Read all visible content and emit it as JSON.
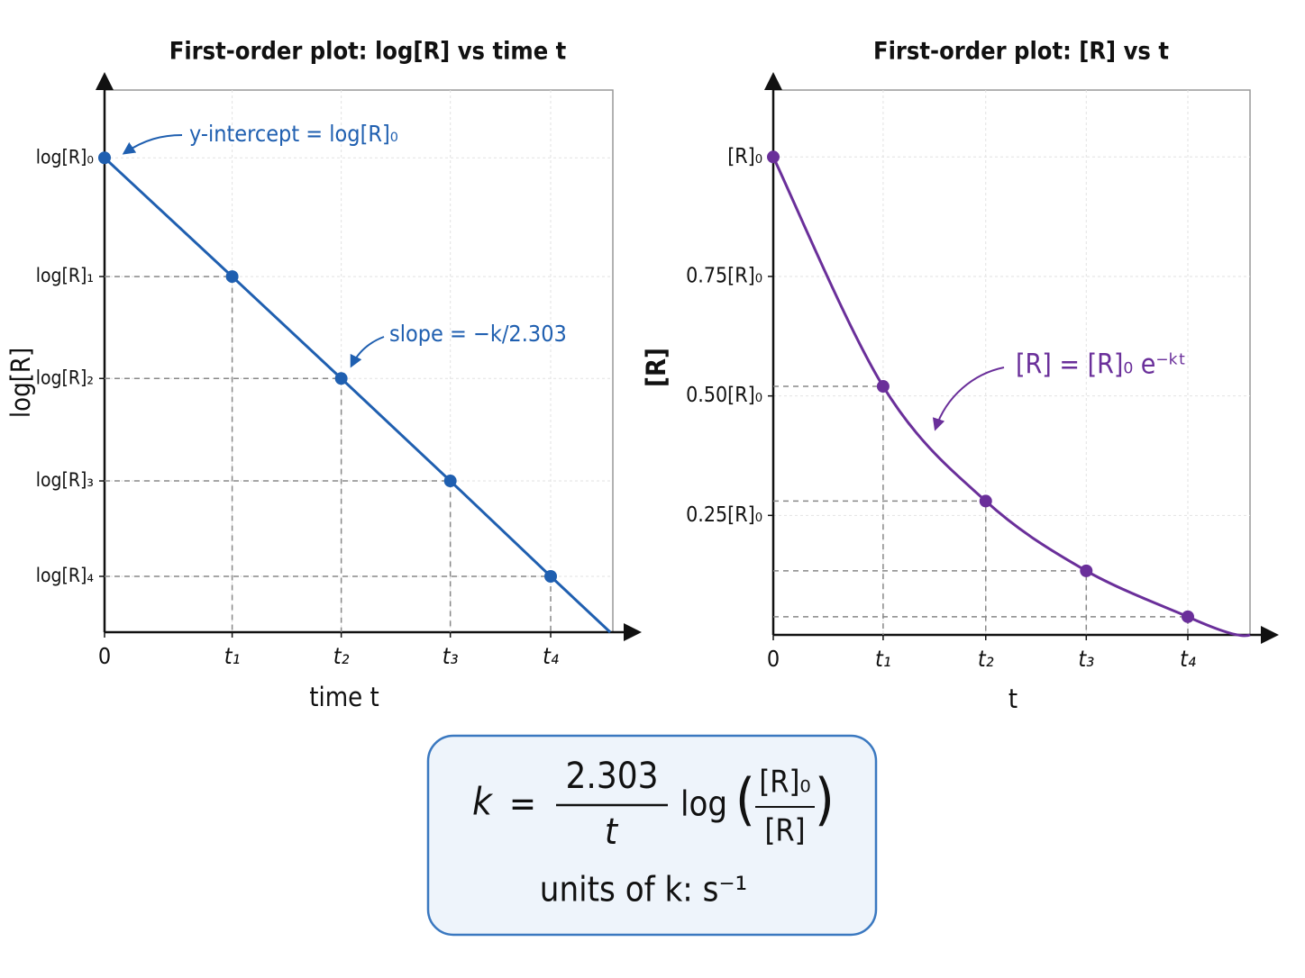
{
  "chart_data": [
    {
      "type": "line",
      "title": "First-order plot: log[R] vs time t",
      "x_label": "time t",
      "y_label": "log[R]",
      "x": [
        0,
        1.17,
        2.17,
        3.17,
        4.09
      ],
      "series": [
        {
          "color": "#1f5fb0",
          "values": [
            0.875,
            0.656,
            0.468,
            0.279,
            0.103
          ]
        }
      ],
      "xlim": [
        0,
        4.66
      ],
      "ylim": [
        0,
        1
      ],
      "xticks": [
        0,
        {
          "value": 1.17,
          "label": "t₁"
        },
        {
          "value": 2.17,
          "label": "t₂"
        },
        {
          "value": 3.17,
          "label": "t₃"
        },
        {
          "value": 4.09,
          "label": "t₄"
        }
      ],
      "yticks": [
        {
          "value": 0.875,
          "label": "log[R]₀"
        },
        {
          "value": 0.656,
          "label": "log[R]₁"
        },
        {
          "value": 0.468,
          "label": "log[R]₂"
        },
        {
          "value": 0.279,
          "label": "log[R]₃"
        },
        {
          "value": 0.103,
          "label": "log[R]₄"
        }
      ],
      "grid": true,
      "curve": "straight",
      "annotations": [
        "y-intercept = log[R]₀",
        "slope = −k/2.303"
      ]
    },
    {
      "type": "line",
      "title": "First-order plot: [R] vs t",
      "x_label": "t",
      "y_label": "[R]",
      "x": [
        0,
        1.06,
        2.05,
        3.02,
        4.0
      ],
      "series": [
        {
          "color": "#6a2f9a",
          "values": [
            1,
            0.52,
            0.28,
            0.134,
            0.038
          ]
        }
      ],
      "xlim": [
        0,
        4.6
      ],
      "ylim": [
        0,
        1.14
      ],
      "xticks": [
        0,
        {
          "value": 1.06,
          "label": "t₁"
        },
        {
          "value": 2.05,
          "label": "t₂"
        },
        {
          "value": 3.02,
          "label": "t₃"
        },
        {
          "value": 4.0,
          "label": "t₄"
        }
      ],
      "yticks": [
        {
          "value": 1,
          "label": "[R]₀"
        },
        {
          "value": 0.75,
          "label": "0.75[R]₀"
        },
        {
          "value": 0.5,
          "label": "0.50[R]₀"
        },
        {
          "value": 0.25,
          "label": "0.25[R]₀"
        }
      ],
      "grid": true,
      "curve": "smooth",
      "annotations": [
        "[R] = [R]₀ e⁻ᵏᵗ"
      ]
    }
  ],
  "formula": {
    "lhs": "k",
    "equals": "=",
    "numerator": "2.303",
    "denominator": "t",
    "function": "log",
    "open_paren": "(",
    "inner_numerator": "[R]₀",
    "inner_denominator": "[R]",
    "close_paren": ")",
    "units": "units of k: s⁻¹"
  }
}
